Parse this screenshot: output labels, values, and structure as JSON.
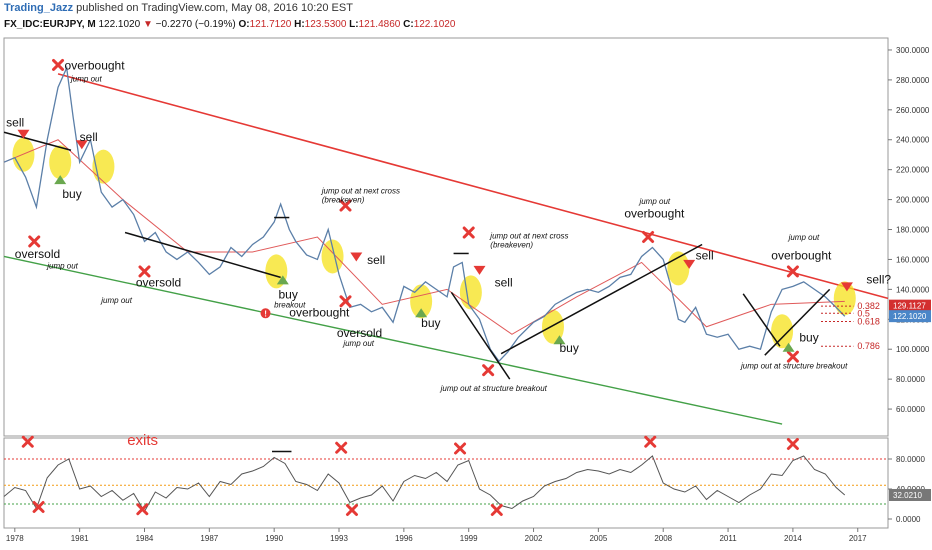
{
  "header": {
    "author": "Trading_Jazz",
    "published": "published on TradingView.com, May 08, 2016 10:20 EST",
    "symbol": "FX_IDC:EURJPY, M",
    "last": "122.1020",
    "change": "−0.2270 (−0.19%)",
    "o_label": "O:",
    "o_value": "121.7120",
    "h_label": "H:",
    "h_value": "123.5300",
    "l_label": "L:",
    "l_value": "121.4860",
    "c_label": "C:",
    "c_value": "122.1020"
  },
  "colors": {
    "price_line": "#5b7fa8",
    "ma_fast": "#111111",
    "ma_slow": "#e05a5a",
    "channel_upper": "#e53935",
    "channel_lower": "#43a047",
    "highlight": "#f6e21a",
    "marker_x": "#e53935",
    "sell_arrow": "#e53935",
    "buy_arrow": "#6aa84f",
    "fib_line": "#c62828",
    "price_badge": "#d32f2f",
    "last_badge": "#4a86c8"
  },
  "chart_data": [
    {
      "type": "line",
      "title": "EURJPY monthly",
      "x": [
        1977.5,
        1978,
        1978.5,
        1979,
        1979.5,
        1980,
        1980.4,
        1980.7,
        1981,
        1981.5,
        1982,
        1982.5,
        1983,
        1983.5,
        1984,
        1984.5,
        1985,
        1985.5,
        1986,
        1986.5,
        1987,
        1987.5,
        1988,
        1988.5,
        1989,
        1989.5,
        1990,
        1990.3,
        1990.7,
        1991,
        1991.5,
        1992,
        1992.5,
        1993,
        1993.5,
        1994,
        1994.5,
        1995,
        1995.5,
        1996,
        1996.5,
        1997,
        1997.5,
        1998,
        1998.3,
        1998.7,
        1999,
        1999.5,
        2000,
        2000.4,
        2000.8,
        2001.3,
        2002,
        2002.5,
        2003,
        2003.5,
        2004,
        2004.5,
        2005,
        2005.5,
        2006,
        2006.5,
        2007,
        2007.5,
        2008,
        2008.3,
        2008.7,
        2009,
        2009.5,
        2010,
        2010.5,
        2011,
        2011.5,
        2012,
        2012.5,
        2013,
        2013.5,
        2014,
        2014.5,
        2015,
        2015.5,
        2016,
        2016.4
      ],
      "y": [
        225,
        228,
        215,
        195,
        240,
        275,
        288,
        255,
        225,
        240,
        205,
        195,
        200,
        190,
        172,
        178,
        165,
        160,
        165,
        158,
        150,
        155,
        168,
        162,
        170,
        175,
        185,
        197,
        180,
        172,
        163,
        160,
        180,
        150,
        128,
        130,
        125,
        128,
        118,
        142,
        138,
        145,
        140,
        135,
        155,
        158,
        130,
        120,
        100,
        92,
        98,
        108,
        118,
        122,
        130,
        134,
        138,
        140,
        138,
        142,
        148,
        150,
        162,
        168,
        160,
        145,
        120,
        118,
        128,
        110,
        108,
        110,
        100,
        102,
        100,
        125,
        140,
        142,
        145,
        140,
        135,
        128,
        122
      ],
      "series": [
        {
          "name": "",
          "x": [
            1977.5,
            1980,
            1983,
            1986,
            1989,
            1992,
            1995,
            1998,
            2001,
            2004,
            2007,
            2010,
            2013,
            2016.4
          ],
          "y": [
            225,
            240,
            200,
            165,
            165,
            175,
            130,
            140,
            110,
            135,
            158,
            115,
            130,
            132
          ]
        }
      ],
      "xlim": [
        1977.5,
        2018.4
      ],
      "ylim": [
        42,
        308
      ],
      "yticks": [
        "300.0000",
        "280.0000",
        "260.0000",
        "240.0000",
        "220.0000",
        "200.0000",
        "180.0000",
        "160.0000",
        "140.0000",
        "120.0000",
        "100.0000",
        "80.0000",
        "60.0000"
      ],
      "ytick_values": [
        300,
        280,
        260,
        240,
        220,
        200,
        180,
        160,
        140,
        120,
        100,
        80,
        60
      ],
      "xticks": [
        "1978",
        "1981",
        "1984",
        "1987",
        "1990",
        "1993",
        "1996",
        "1999",
        "2002",
        "2005",
        "2008",
        "2011",
        "2014",
        "2017"
      ],
      "xtick_values": [
        1978,
        1981,
        1984,
        1987,
        1990,
        1993,
        1996,
        1999,
        2002,
        2005,
        2008,
        2011,
        2014,
        2017
      ],
      "price_labels": [
        "129.1127",
        "122.1020"
      ],
      "price_label_values": [
        129.1127,
        122.102
      ],
      "fib_levels": [
        {
          "label": "0.382",
          "value": 128.8
        },
        {
          "label": "0.5",
          "value": 124
        },
        {
          "label": "0.618",
          "value": 118.5
        },
        {
          "label": "0.786",
          "value": 102
        }
      ],
      "channel_upper": [
        [
          1980,
          284
        ],
        [
          2018.4,
          134
        ]
      ],
      "channel_lower": [
        [
          1977.5,
          162
        ],
        [
          2013.5,
          50
        ]
      ],
      "trendlines": [
        {
          "color": "#111111",
          "points": [
            [
              1977.5,
              245
            ],
            [
              1980.6,
              233
            ]
          ]
        },
        {
          "color": "#111111",
          "points": [
            [
              1983.1,
              178
            ],
            [
              1990.3,
              148
            ]
          ]
        },
        {
          "color": "#111111",
          "points": [
            [
              1998.2,
              138
            ],
            [
              2000.9,
              80
            ]
          ]
        },
        {
          "color": "#111111",
          "points": [
            [
              2000.5,
              97
            ],
            [
              2009.8,
              170
            ]
          ]
        },
        {
          "color": "#111111",
          "points": [
            [
              2011.7,
              137
            ],
            [
              2013.4,
              102
            ]
          ]
        },
        {
          "color": "#111111",
          "points": [
            [
              2012.7,
              96
            ],
            [
              2015.7,
              140
            ]
          ]
        },
        {
          "color": "#111111",
          "points": [
            [
              1990,
              188
            ],
            [
              1990.7,
              188
            ]
          ]
        },
        {
          "color": "#111111",
          "points": [
            [
              1998.3,
              164
            ],
            [
              1999,
              164
            ]
          ]
        }
      ],
      "highlights": [
        [
          1978.4,
          230
        ],
        [
          1980.1,
          225
        ],
        [
          1982.1,
          222
        ],
        [
          1990.1,
          152
        ],
        [
          1992.7,
          162
        ],
        [
          1996.8,
          132
        ],
        [
          1999.1,
          138
        ],
        [
          2002.9,
          115
        ],
        [
          2008.7,
          154
        ],
        [
          2013.5,
          112
        ],
        [
          2016.4,
          134
        ]
      ],
      "x_markers": [
        [
          1978.9,
          172
        ],
        [
          1980,
          290
        ],
        [
          1984,
          152
        ],
        [
          1993.3,
          196
        ],
        [
          1993.3,
          132
        ],
        [
          1999,
          178
        ],
        [
          1999.9,
          86
        ],
        [
          2007.3,
          175
        ],
        [
          2014,
          152
        ],
        [
          2014,
          95
        ]
      ],
      "sell_markers": [
        [
          1978.4,
          244
        ],
        [
          1981.1,
          237
        ],
        [
          1993.8,
          162
        ],
        [
          1999.5,
          153
        ],
        [
          2009.2,
          157
        ],
        [
          2016.5,
          142
        ]
      ],
      "buy_markers": [
        [
          1980.1,
          213
        ],
        [
          1990.4,
          146
        ],
        [
          1996.8,
          124
        ],
        [
          2003.2,
          106
        ],
        [
          2013.8,
          101
        ]
      ],
      "annotations": [
        {
          "text": "sell",
          "x": 1977.6,
          "y": 249,
          "style": "label"
        },
        {
          "text": "buy",
          "x": 1980.2,
          "y": 201,
          "style": "label"
        },
        {
          "text": "sell",
          "x": 1981,
          "y": 239,
          "style": "label"
        },
        {
          "text": "overbought",
          "x": 1980.3,
          "y": 287,
          "style": "label"
        },
        {
          "text": "jump out",
          "x": 1980.6,
          "y": 279,
          "style": "note"
        },
        {
          "text": "oversold",
          "x": 1978,
          "y": 161,
          "style": "label"
        },
        {
          "text": "jump out",
          "x": 1979.5,
          "y": 154,
          "style": "note"
        },
        {
          "text": "oversold",
          "x": 1983.6,
          "y": 142,
          "style": "label"
        },
        {
          "text": "jump out",
          "x": 1982,
          "y": 131,
          "style": "note"
        },
        {
          "text": "buy",
          "x": 1990.2,
          "y": 134,
          "style": "label"
        },
        {
          "text": "breakout",
          "x": 1990,
          "y": 128,
          "style": "note"
        },
        {
          "text": "overbought",
          "x": 1990.7,
          "y": 122,
          "style": "label"
        },
        {
          "text": "jump out at next cross",
          "x": 1992.2,
          "y": 204,
          "style": "note"
        },
        {
          "text": "(breakeven)",
          "x": 1992.2,
          "y": 198,
          "style": "note"
        },
        {
          "text": "sell",
          "x": 1994.3,
          "y": 157,
          "style": "label"
        },
        {
          "text": "buy",
          "x": 1996.8,
          "y": 115,
          "style": "label"
        },
        {
          "text": "oversold",
          "x": 1992.9,
          "y": 108,
          "style": "label"
        },
        {
          "text": "jump out",
          "x": 1993.2,
          "y": 102,
          "style": "note"
        },
        {
          "text": "jump out at next cross",
          "x": 2000,
          "y": 174,
          "style": "note"
        },
        {
          "text": "(breakeven)",
          "x": 2000,
          "y": 168,
          "style": "note"
        },
        {
          "text": "sell",
          "x": 2000.2,
          "y": 142,
          "style": "label"
        },
        {
          "text": "jump out at structure breakout",
          "x": 1997.7,
          "y": 72,
          "style": "note"
        },
        {
          "text": "buy",
          "x": 2003.2,
          "y": 98,
          "style": "label"
        },
        {
          "text": "jump out",
          "x": 2006.9,
          "y": 197,
          "style": "note"
        },
        {
          "text": "overbought",
          "x": 2006.2,
          "y": 188,
          "style": "label"
        },
        {
          "text": "sell",
          "x": 2009.5,
          "y": 160,
          "style": "label"
        },
        {
          "text": "jump out",
          "x": 2013.8,
          "y": 173,
          "style": "note"
        },
        {
          "text": "overbought",
          "x": 2013,
          "y": 160,
          "style": "label"
        },
        {
          "text": "buy",
          "x": 2014.3,
          "y": 105,
          "style": "label"
        },
        {
          "text": "jump out at structure breakout",
          "x": 2011.6,
          "y": 87,
          "style": "note"
        },
        {
          "text": "sell?",
          "x": 2017.4,
          "y": 144,
          "style": "label"
        }
      ],
      "warning_marker": {
        "text": "!",
        "x": 1989.6,
        "y": 124
      }
    },
    {
      "type": "line",
      "title": "exits",
      "x": [
        1977.5,
        1978,
        1978.5,
        1979,
        1979.5,
        1980,
        1980.5,
        1981,
        1981.5,
        1982,
        1982.5,
        1983,
        1983.5,
        1984,
        1984.5,
        1985,
        1985.5,
        1986,
        1986.5,
        1987,
        1987.5,
        1988,
        1988.5,
        1989,
        1989.5,
        1990,
        1990.5,
        1991,
        1991.5,
        1992,
        1992.5,
        1993,
        1993.5,
        1994,
        1994.5,
        1995,
        1995.5,
        1996,
        1996.5,
        1997,
        1997.5,
        1998,
        1998.5,
        1999,
        1999.5,
        2000,
        2000.5,
        2001,
        2001.5,
        2002,
        2002.5,
        2003,
        2003.5,
        2004,
        2004.5,
        2005,
        2005.5,
        2006,
        2006.5,
        2007,
        2007.5,
        2008,
        2008.5,
        2009,
        2009.5,
        2010,
        2010.5,
        2011,
        2011.5,
        2012,
        2012.5,
        2013,
        2013.5,
        2014,
        2014.5,
        2015,
        2015.5,
        2016,
        2016.4
      ],
      "y": [
        30,
        42,
        38,
        14,
        55,
        72,
        80,
        40,
        44,
        30,
        38,
        25,
        34,
        10,
        36,
        28,
        42,
        40,
        48,
        30,
        50,
        46,
        60,
        64,
        70,
        82,
        74,
        50,
        46,
        38,
        60,
        48,
        22,
        28,
        32,
        44,
        24,
        50,
        58,
        54,
        62,
        50,
        72,
        78,
        40,
        32,
        18,
        14,
        24,
        30,
        44,
        50,
        54,
        62,
        66,
        64,
        60,
        66,
        62,
        72,
        84,
        48,
        40,
        36,
        44,
        26,
        38,
        30,
        22,
        32,
        40,
        60,
        58,
        78,
        84,
        66,
        60,
        42,
        32
      ],
      "ylim": [
        -12,
        108
      ],
      "yticks": [
        "80.0000",
        "40.0000",
        "0.0000"
      ],
      "ytick_values": [
        80,
        40,
        0
      ],
      "ref_lines": [
        80,
        45,
        20
      ],
      "last_label": "32.0210",
      "last_value": 32.021,
      "x_markers": [
        [
          1978.6,
          103
        ],
        [
          1979.1,
          16
        ],
        [
          1983.9,
          13
        ],
        [
          1993.1,
          95
        ],
        [
          1993.6,
          12
        ],
        [
          1998.6,
          94
        ],
        [
          2000.3,
          12
        ],
        [
          2007.4,
          103
        ],
        [
          2014,
          100
        ]
      ],
      "overbought_bar": [
        [
          1989.9,
          90
        ],
        [
          1990.8,
          90
        ]
      ],
      "label": "exits"
    }
  ]
}
